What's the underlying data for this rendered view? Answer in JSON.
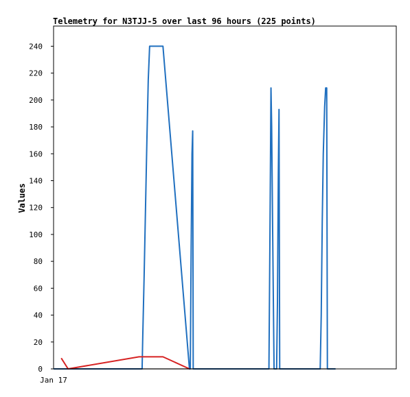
{
  "chart_data": {
    "type": "line",
    "title": "Telemetry for N3TJJ-5 over last 96 hours (225 points)",
    "xlabel": "",
    "ylabel": "Values",
    "x_tick_labels": [
      "Jan 17"
    ],
    "ylim": [
      0,
      255
    ],
    "y_ticks": [
      0,
      20,
      40,
      60,
      80,
      100,
      120,
      140,
      160,
      180,
      200,
      220,
      240
    ],
    "grid": false,
    "legend": "none",
    "series": [
      {
        "color": "#1f6fbf",
        "points": [
          [
            0,
            0
          ],
          [
            2.4,
            0
          ],
          [
            5.18,
            0
          ],
          [
            5.22,
            25
          ],
          [
            5.3,
            70
          ],
          [
            5.38,
            120
          ],
          [
            5.46,
            170
          ],
          [
            5.54,
            215
          ],
          [
            5.62,
            240
          ],
          [
            6.4,
            240
          ],
          [
            7.95,
            0
          ],
          [
            8.0,
            0
          ],
          [
            8.05,
            90
          ],
          [
            8.1,
            160
          ],
          [
            8.14,
            177
          ],
          [
            8.17,
            0
          ],
          [
            8.3,
            0
          ],
          [
            12.6,
            0
          ],
          [
            12.66,
            100
          ],
          [
            12.72,
            209
          ],
          [
            12.76,
            180
          ],
          [
            12.82,
            100
          ],
          [
            12.9,
            0
          ],
          [
            13.05,
            0
          ],
          [
            13.1,
            50
          ],
          [
            13.15,
            145
          ],
          [
            13.19,
            193
          ],
          [
            13.23,
            0
          ],
          [
            15.6,
            0
          ],
          [
            15.66,
            40
          ],
          [
            15.72,
            110
          ],
          [
            15.78,
            160
          ],
          [
            15.86,
            195
          ],
          [
            15.92,
            209
          ],
          [
            15.98,
            209
          ],
          [
            16.02,
            0
          ],
          [
            16.5,
            0
          ]
        ]
      },
      {
        "color": "#d62222",
        "points": [
          [
            0.45,
            8
          ],
          [
            0.85,
            0
          ],
          [
            5.0,
            9
          ],
          [
            6.4,
            9
          ],
          [
            7.95,
            0
          ]
        ]
      },
      {
        "color": "#000000",
        "points": [
          [
            0.0,
            0
          ],
          [
            16.5,
            0
          ]
        ]
      }
    ]
  }
}
